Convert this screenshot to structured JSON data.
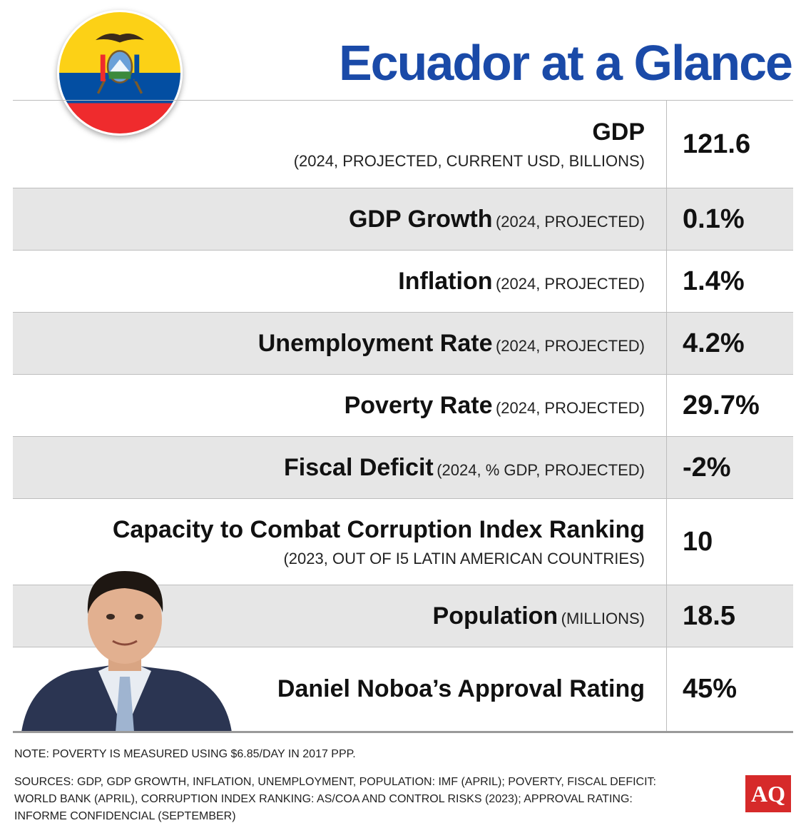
{
  "title": "Ecuador at a Glance",
  "colors": {
    "title": "#1a4aa8",
    "shaded_row": "#e6e6e6",
    "logo": "#d62a2a"
  },
  "icons": {
    "flag": "ecuador-flag-icon",
    "portrait": "daniel-noboa-portrait"
  },
  "rows": [
    {
      "label": "GDP",
      "qualifier": "",
      "sub": "(2024, PROJECTED, CURRENT USD, BILLIONS)",
      "value": "121.6"
    },
    {
      "label": "GDP Growth",
      "qualifier": "(2024, PROJECTED)",
      "sub": "",
      "value": "0.1%"
    },
    {
      "label": "Inflation",
      "qualifier": "(2024, PROJECTED)",
      "sub": "",
      "value": "1.4%"
    },
    {
      "label": "Unemployment Rate",
      "qualifier": "(2024, PROJECTED)",
      "sub": "",
      "value": "4.2%"
    },
    {
      "label": "Poverty Rate",
      "qualifier": "(2024, PROJECTED)",
      "sub": "",
      "value": "29.7%"
    },
    {
      "label": "Fiscal Deficit",
      "qualifier": "(2024, % GDP, PROJECTED)",
      "sub": "",
      "value": "-2%"
    },
    {
      "label": "Capacity to Combat Corruption Index Ranking",
      "qualifier": "",
      "sub": "(2023, OUT OF I5 LATIN AMERICAN COUNTRIES)",
      "value": "10"
    },
    {
      "label": "Population",
      "qualifier": "(MILLIONS)",
      "sub": "",
      "value": "18.5"
    },
    {
      "label": "Daniel Noboa’s Approval Rating",
      "qualifier": "",
      "sub": "",
      "value": "45%"
    }
  ],
  "note": "NOTE: POVERTY IS MEASURED USING $6.85/DAY IN 2017 PPP.",
  "sources": "SOURCES: GDP, GDP GROWTH, INFLATION, UNEMPLOYMENT, POPULATION: IMF (APRIL); POVERTY, FISCAL DEFICIT: WORLD BANK (APRIL), CORRUPTION INDEX RANKING: AS/COA AND CONTROL RISKS (2023); APPROVAL RATING: INFORME CONFIDENCIAL (SEPTEMBER)",
  "logo": "AQ"
}
